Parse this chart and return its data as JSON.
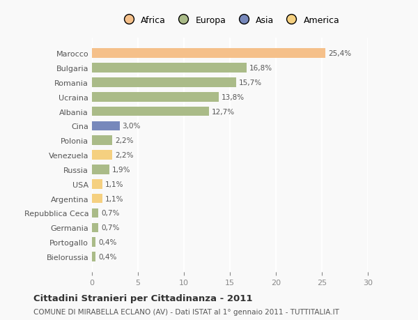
{
  "countries": [
    "Marocco",
    "Bulgaria",
    "Romania",
    "Ucraina",
    "Albania",
    "Cina",
    "Polonia",
    "Venezuela",
    "Russia",
    "USA",
    "Argentina",
    "Repubblica Ceca",
    "Germania",
    "Portogallo",
    "Bielorussia"
  ],
  "values": [
    25.4,
    16.8,
    15.7,
    13.8,
    12.7,
    3.0,
    2.2,
    2.2,
    1.9,
    1.1,
    1.1,
    0.7,
    0.7,
    0.4,
    0.4
  ],
  "labels": [
    "25,4%",
    "16,8%",
    "15,7%",
    "13,8%",
    "12,7%",
    "3,0%",
    "2,2%",
    "2,2%",
    "1,9%",
    "1,1%",
    "1,1%",
    "0,7%",
    "0,7%",
    "0,4%",
    "0,4%"
  ],
  "colors": [
    "#F5C08A",
    "#AABB88",
    "#AABB88",
    "#AABB88",
    "#AABB88",
    "#7788BB",
    "#AABB88",
    "#F5D080",
    "#AABB88",
    "#F5D080",
    "#F5D080",
    "#AABB88",
    "#AABB88",
    "#AABB88",
    "#AABB88"
  ],
  "legend_labels": [
    "Africa",
    "Europa",
    "Asia",
    "America"
  ],
  "legend_colors": [
    "#F5C08A",
    "#AABB88",
    "#7788BB",
    "#F5D080"
  ],
  "title": "Cittadini Stranieri per Cittadinanza - 2011",
  "subtitle": "COMUNE DI MIRABELLA ECLANO (AV) - Dati ISTAT al 1° gennaio 2011 - TUTTITALIA.IT",
  "xlim": [
    0,
    30
  ],
  "xticks": [
    0,
    5,
    10,
    15,
    20,
    25,
    30
  ],
  "background_color": "#f9f9f9",
  "grid_color": "#ffffff",
  "bar_height": 0.65
}
